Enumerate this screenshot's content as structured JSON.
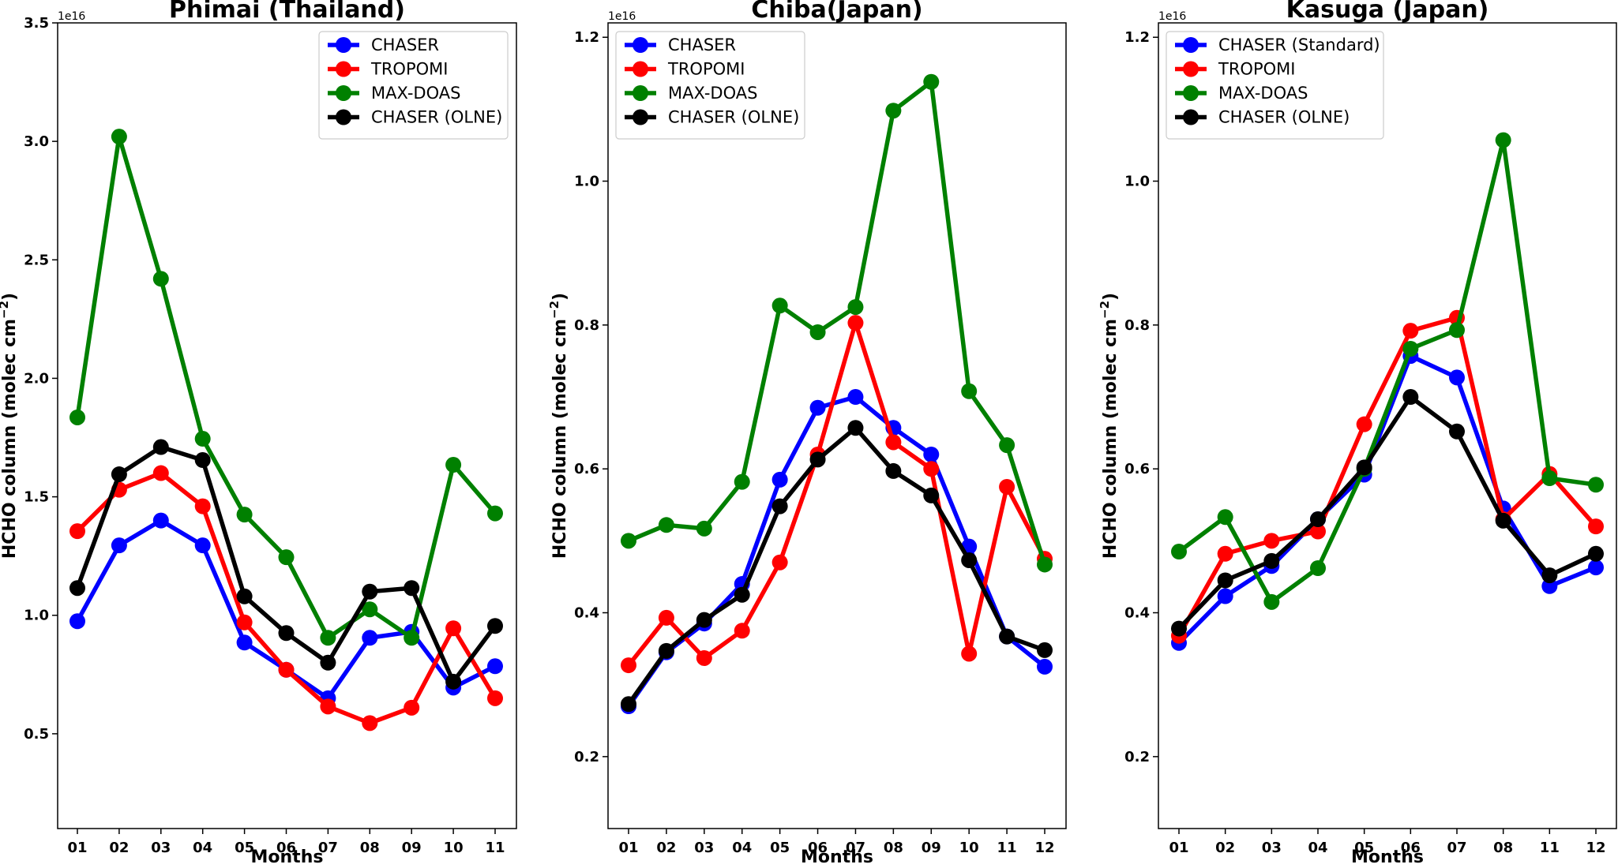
{
  "chart_data": [
    {
      "type": "line",
      "title": "Phimai (Thailand)",
      "xlabel": "Months",
      "ylabel": "HCHO column (molec cm",
      "ylabel_exp": "−2",
      "ylabel_close": ")",
      "offset_text": "1e16",
      "categories": [
        "01",
        "02",
        "03",
        "04",
        "05",
        "06",
        "07",
        "08",
        "09",
        "10",
        "11"
      ],
      "ylim": [
        0.1,
        3.5
      ],
      "yticks": [
        0.5,
        1.0,
        1.5,
        2.0,
        2.5,
        3.0,
        3.5
      ],
      "ytick_labels": [
        "0.5",
        "1.0",
        "1.5",
        "2.0",
        "2.5",
        "3.0",
        "3.5"
      ],
      "legend_position": "top-right",
      "series": [
        {
          "name": "CHASER",
          "color": "#0000ff",
          "values": [
            0.975,
            1.295,
            1.4,
            1.295,
            0.885,
            0.77,
            0.65,
            0.905,
            0.93,
            0.695,
            0.785
          ]
        },
        {
          "name": "TROPOMI",
          "color": "#ff0000",
          "values": [
            1.355,
            1.53,
            1.6,
            1.46,
            0.97,
            0.77,
            0.615,
            0.545,
            0.61,
            0.945,
            0.65
          ]
        },
        {
          "name": "MAX-DOAS",
          "color": "#008000",
          "values": [
            1.835,
            3.02,
            2.42,
            1.745,
            1.425,
            1.245,
            0.905,
            1.025,
            0.905,
            1.635,
            1.43
          ]
        },
        {
          "name": "CHASER (OLNE)",
          "color": "#000000",
          "values": [
            1.115,
            1.595,
            1.71,
            1.655,
            1.08,
            0.925,
            0.8,
            1.1,
            1.115,
            0.72,
            0.955
          ]
        }
      ]
    },
    {
      "type": "line",
      "title": "Chiba(Japan)",
      "xlabel": "Months",
      "ylabel": "HCHO column (molec cm",
      "ylabel_exp": "−2",
      "ylabel_close": ")",
      "offset_text": "1e16",
      "categories": [
        "01",
        "02",
        "03",
        "04",
        "05",
        "06",
        "07",
        "08",
        "09",
        "10",
        "11",
        "12"
      ],
      "ylim": [
        0.1,
        1.22
      ],
      "yticks": [
        0.2,
        0.4,
        0.6,
        0.8,
        1.0,
        1.2
      ],
      "ytick_labels": [
        "0.2",
        "0.4",
        "0.6",
        "0.8",
        "1.0",
        "1.2"
      ],
      "legend_position": "top-left",
      "series": [
        {
          "name": "CHASER",
          "color": "#0000ff",
          "values": [
            0.27,
            0.345,
            0.385,
            0.44,
            0.585,
            0.685,
            0.7,
            0.657,
            0.62,
            0.492,
            0.367,
            0.325
          ]
        },
        {
          "name": "TROPOMI",
          "color": "#ff0000",
          "values": [
            0.327,
            0.393,
            0.337,
            0.375,
            0.47,
            0.62,
            0.803,
            0.637,
            0.6,
            0.343,
            0.575,
            0.475
          ]
        },
        {
          "name": "MAX-DOAS",
          "color": "#008000",
          "values": [
            0.5,
            0.522,
            0.517,
            0.582,
            0.827,
            0.79,
            0.825,
            1.098,
            1.138,
            0.708,
            0.633,
            0.467
          ]
        },
        {
          "name": "CHASER (OLNE)",
          "color": "#000000",
          "values": [
            0.273,
            0.347,
            0.39,
            0.425,
            0.548,
            0.613,
            0.657,
            0.597,
            0.563,
            0.473,
            0.367,
            0.348
          ]
        }
      ]
    },
    {
      "type": "line",
      "title": "Kasuga (Japan)",
      "xlabel": "Months",
      "ylabel": "HCHO column (molec cm",
      "ylabel_exp": "−2",
      "ylabel_close": ")",
      "offset_text": "1e16",
      "categories": [
        "01",
        "02",
        "03",
        "04",
        "05",
        "06",
        "07",
        "08",
        "11",
        "12"
      ],
      "ylim": [
        0.1,
        1.22
      ],
      "yticks": [
        0.2,
        0.4,
        0.6,
        0.8,
        1.0,
        1.2
      ],
      "ytick_labels": [
        "0.2",
        "0.4",
        "0.6",
        "0.8",
        "1.0",
        "1.2"
      ],
      "legend_position": "top-left",
      "series": [
        {
          "name": "CHASER (Standard)",
          "color": "#0000ff",
          "values": [
            0.358,
            0.423,
            0.465,
            0.53,
            0.592,
            0.757,
            0.727,
            0.545,
            0.437,
            0.463
          ]
        },
        {
          "name": "TROPOMI",
          "color": "#ff0000",
          "values": [
            0.368,
            0.482,
            0.5,
            0.513,
            0.662,
            0.792,
            0.81,
            0.53,
            0.593,
            0.52
          ]
        },
        {
          "name": "MAX-DOAS",
          "color": "#008000",
          "values": [
            0.485,
            0.533,
            0.415,
            0.462,
            0.6,
            0.767,
            0.793,
            1.057,
            0.587,
            0.578
          ]
        },
        {
          "name": "CHASER (OLNE)",
          "color": "#000000",
          "values": [
            0.378,
            0.445,
            0.472,
            0.53,
            0.602,
            0.7,
            0.652,
            0.528,
            0.452,
            0.482
          ]
        }
      ]
    }
  ]
}
